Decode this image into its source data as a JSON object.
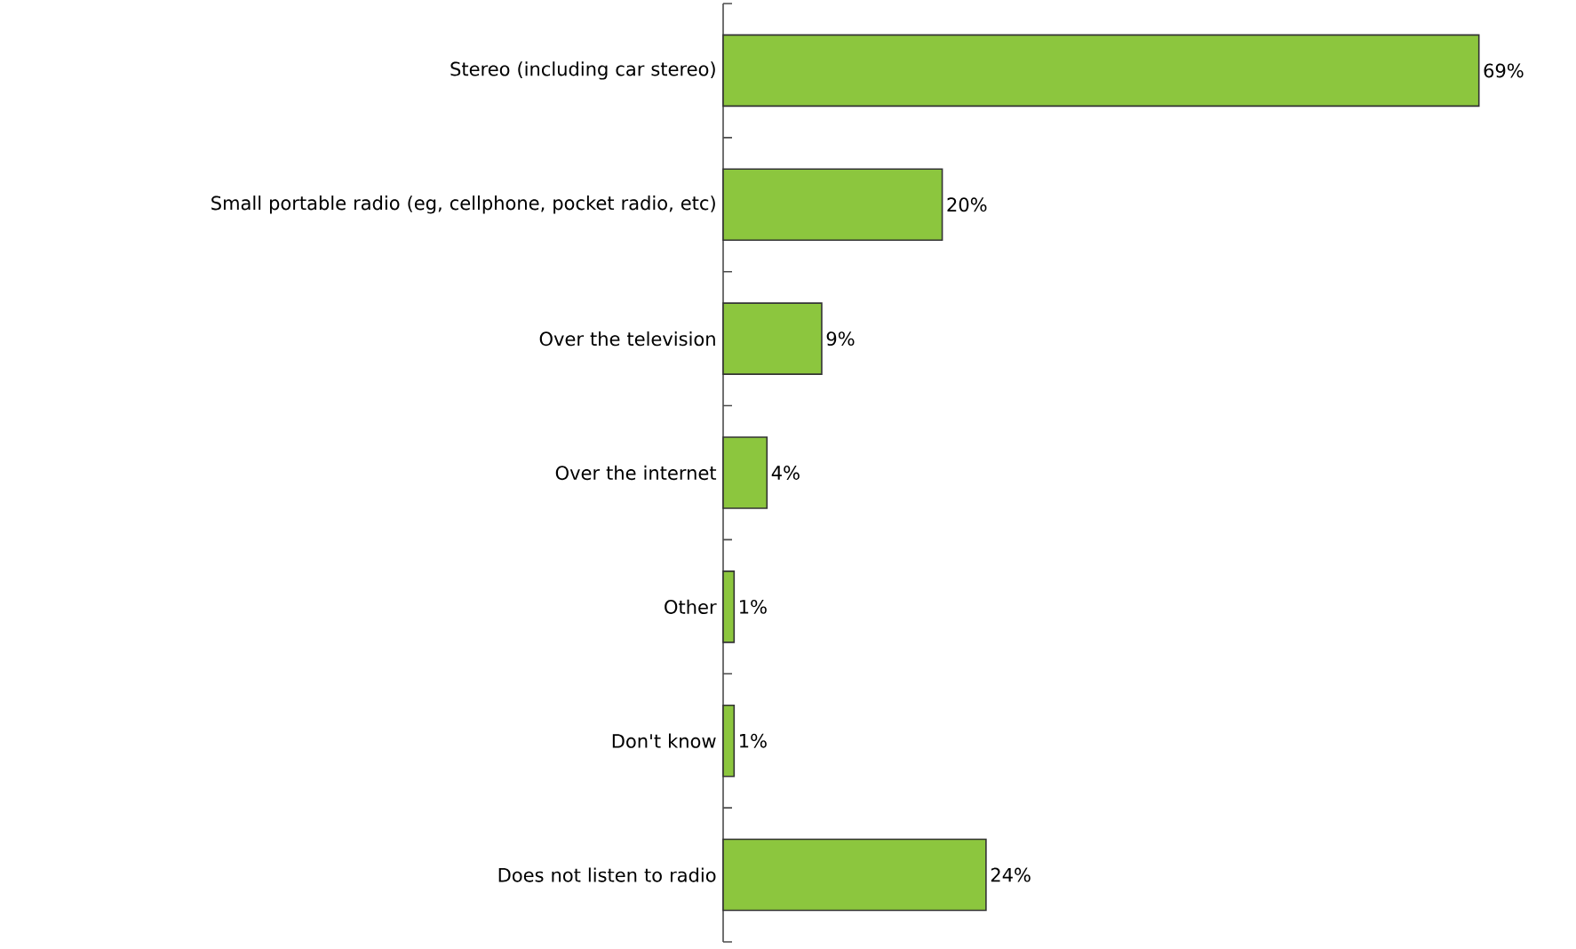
{
  "chart_data": {
    "type": "bar",
    "orientation": "horizontal",
    "categories": [
      "Stereo (including car stereo)",
      "Small portable radio (eg, cellphone, pocket radio, etc)",
      "Over the television",
      "Over the internet",
      "Other",
      "Don't know",
      "Does not listen to radio"
    ],
    "values": [
      69,
      20,
      9,
      4,
      1,
      1,
      24
    ],
    "value_labels": [
      "69%",
      "20%",
      "9%",
      "4%",
      "1%",
      "1%",
      "24%"
    ],
    "color": "#8cc63e"
  }
}
